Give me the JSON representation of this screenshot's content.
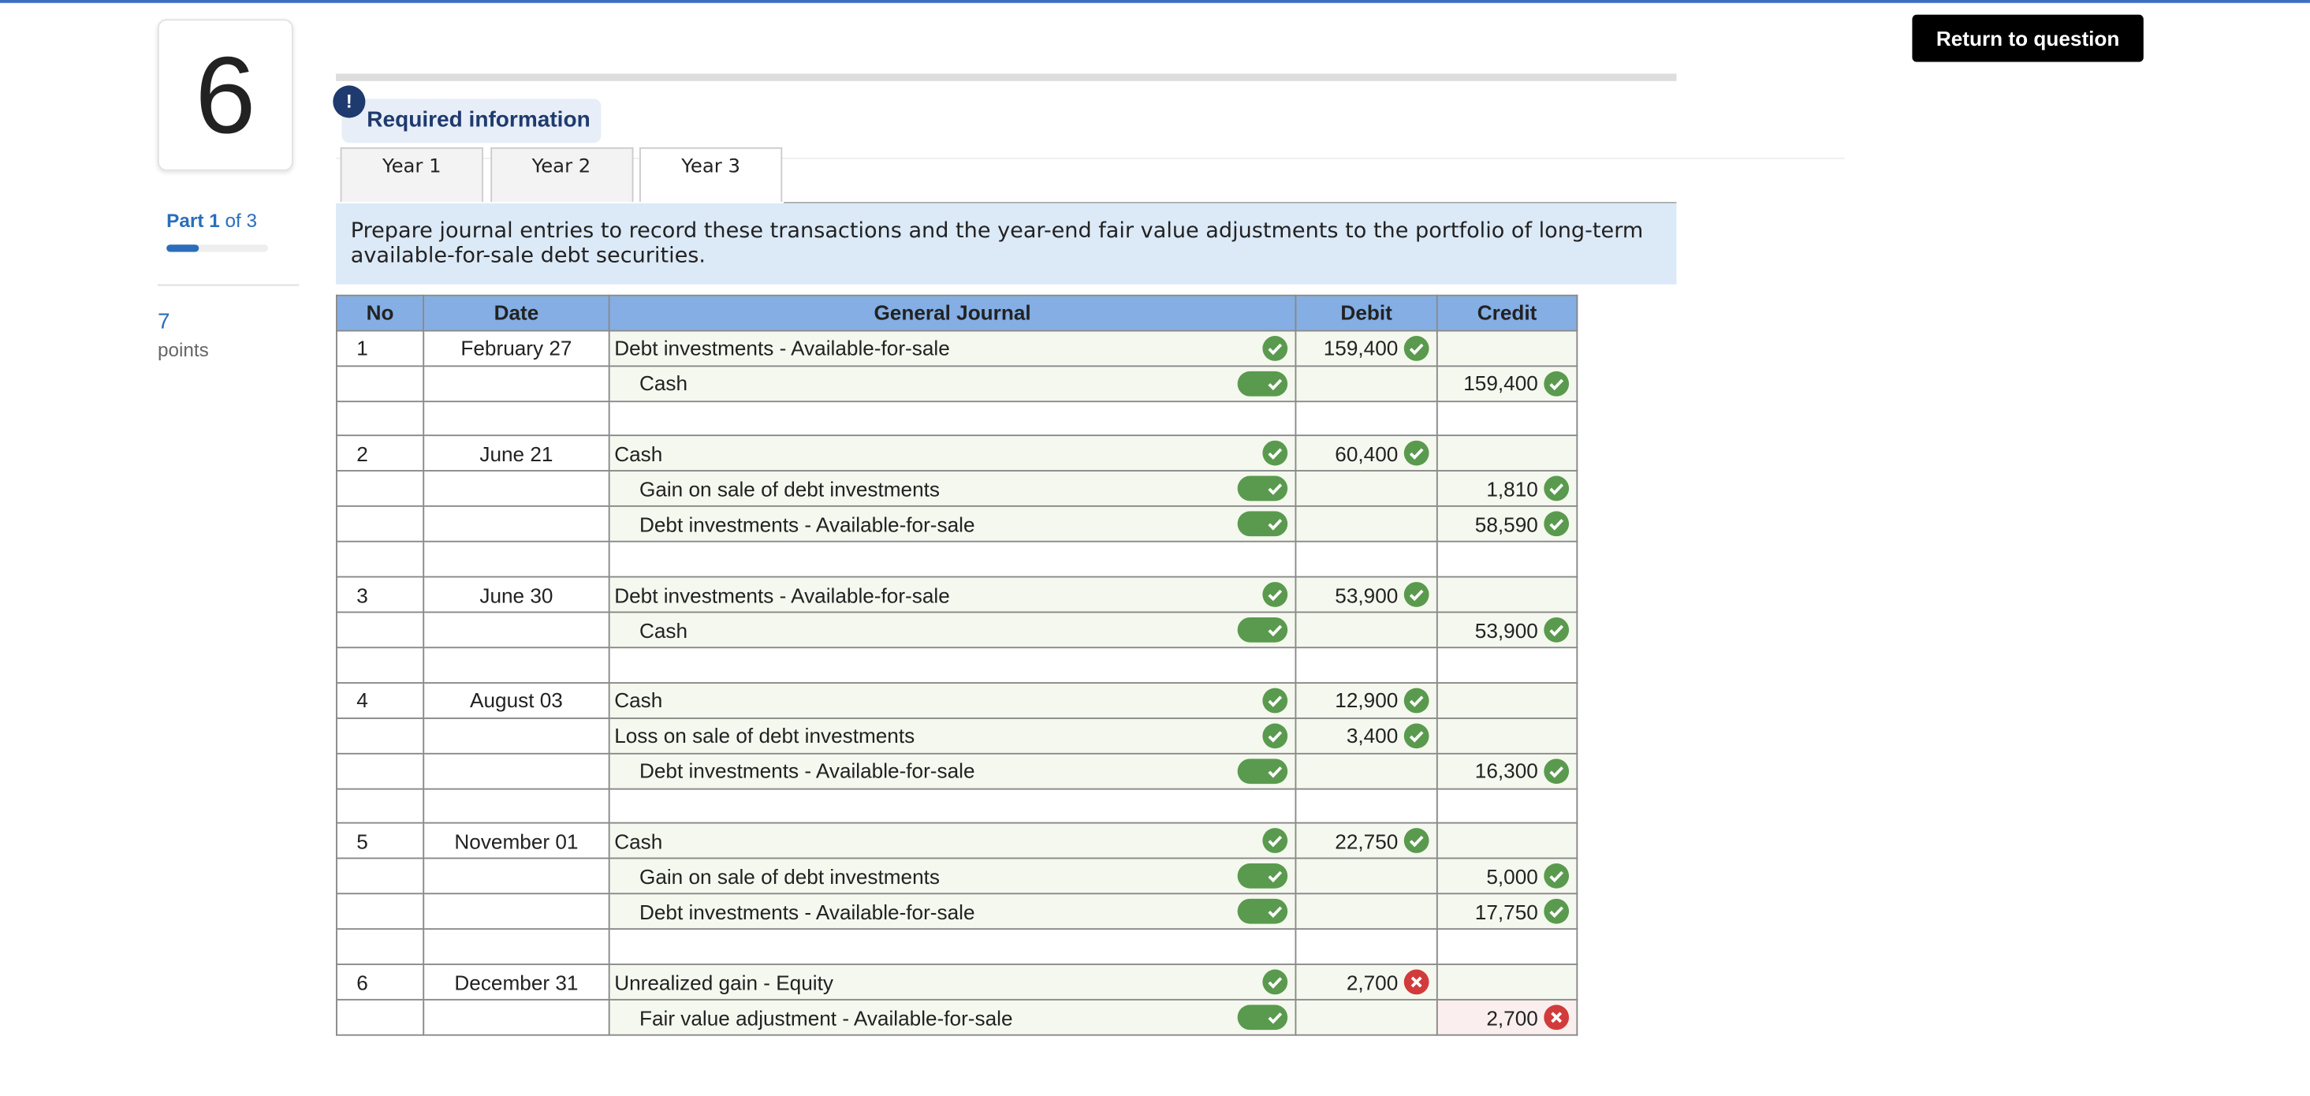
{
  "question_number": "6",
  "progress": {
    "part_label": "Part",
    "part": "1",
    "of_label": "of 3",
    "points": "7",
    "points_label": "points"
  },
  "return_button": "Return to question",
  "required_information": "Required information",
  "tabs": [
    "Year 1",
    "Year 2",
    "Year 3"
  ],
  "active_tab": 2,
  "instruction": "Prepare journal entries to record these transactions and the year-end fair value adjustments to the portfolio of long-term available-for-sale debt securities.",
  "table": {
    "headers": [
      "No",
      "Date",
      "General Journal",
      "Debit",
      "Credit"
    ],
    "entries": [
      {
        "no": "1",
        "date": "February 27",
        "lines": [
          {
            "account": "Debt investments - Available-for-sale",
            "debit": "159,400",
            "amount_correct": true
          },
          {
            "account": "Cash",
            "credit": "159,400",
            "amount_correct": true
          }
        ]
      },
      {
        "no": "2",
        "date": "June 21",
        "lines": [
          {
            "account": "Cash",
            "debit": "60,400",
            "amount_correct": true
          },
          {
            "account": "Gain on sale of debt investments",
            "credit": "1,810",
            "amount_correct": true
          },
          {
            "account": "Debt investments - Available-for-sale",
            "credit": "58,590",
            "amount_correct": true
          }
        ]
      },
      {
        "no": "3",
        "date": "June 30",
        "lines": [
          {
            "account": "Debt investments - Available-for-sale",
            "debit": "53,900",
            "amount_correct": true
          },
          {
            "account": "Cash",
            "credit": "53,900",
            "amount_correct": true
          }
        ]
      },
      {
        "no": "4",
        "date": "August 03",
        "lines": [
          {
            "account": "Cash",
            "debit": "12,900",
            "amount_correct": true
          },
          {
            "account": "Loss on sale of debt investments",
            "debit": "3,400",
            "amount_correct": true
          },
          {
            "account": "Debt investments - Available-for-sale",
            "credit": "16,300",
            "amount_correct": true
          }
        ]
      },
      {
        "no": "5",
        "date": "November 01",
        "lines": [
          {
            "account": "Cash",
            "debit": "22,750",
            "amount_correct": true
          },
          {
            "account": "Gain on sale of debt investments",
            "credit": "5,000",
            "amount_correct": true
          },
          {
            "account": "Debt investments - Available-for-sale",
            "credit": "17,750",
            "amount_correct": true
          }
        ]
      },
      {
        "no": "6",
        "date": "December 31",
        "lines": [
          {
            "account": "Unrealized gain - Equity",
            "debit": "2,700",
            "amount_correct": false
          },
          {
            "account": "Fair value adjustment - Available-for-sale",
            "credit": "2,700",
            "amount_correct": false
          }
        ]
      }
    ]
  }
}
